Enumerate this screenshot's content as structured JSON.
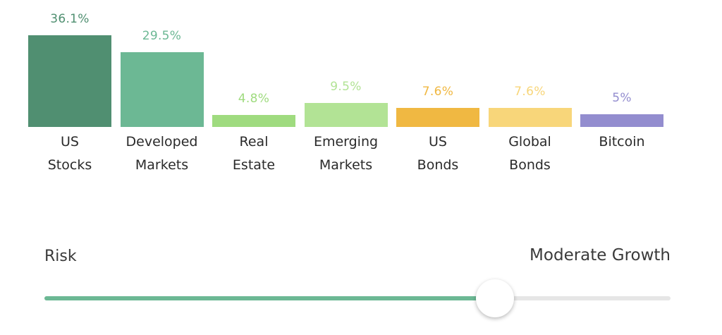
{
  "chart_data": {
    "type": "bar",
    "categories": [
      "US\nStocks",
      "Developed\nMarkets",
      "Real\nEstate",
      "Emerging\nMarkets",
      "US\nBonds",
      "Global\nBonds",
      "Bitcoin"
    ],
    "values": [
      36.1,
      29.5,
      4.8,
      9.5,
      7.6,
      7.6,
      5
    ],
    "value_labels": [
      "36.1%",
      "29.5%",
      "4.8%",
      "9.5%",
      "7.6%",
      "7.6%",
      "5%"
    ],
    "colors": [
      "#508f71",
      "#6cb894",
      "#9fdb7f",
      "#b2e395",
      "#f0b842",
      "#f8d67a",
      "#938dcf"
    ],
    "label_colors": [
      "#4f8f70",
      "#6cb894",
      "#9fdb7f",
      "#b2e395",
      "#f0b842",
      "#f8d67a",
      "#938dcf"
    ]
  },
  "risk": {
    "label": "Risk",
    "value_label": "Moderate Growth",
    "level": 0.72,
    "fill_color": "#6cb894",
    "track_color": "#e6e6e6"
  }
}
